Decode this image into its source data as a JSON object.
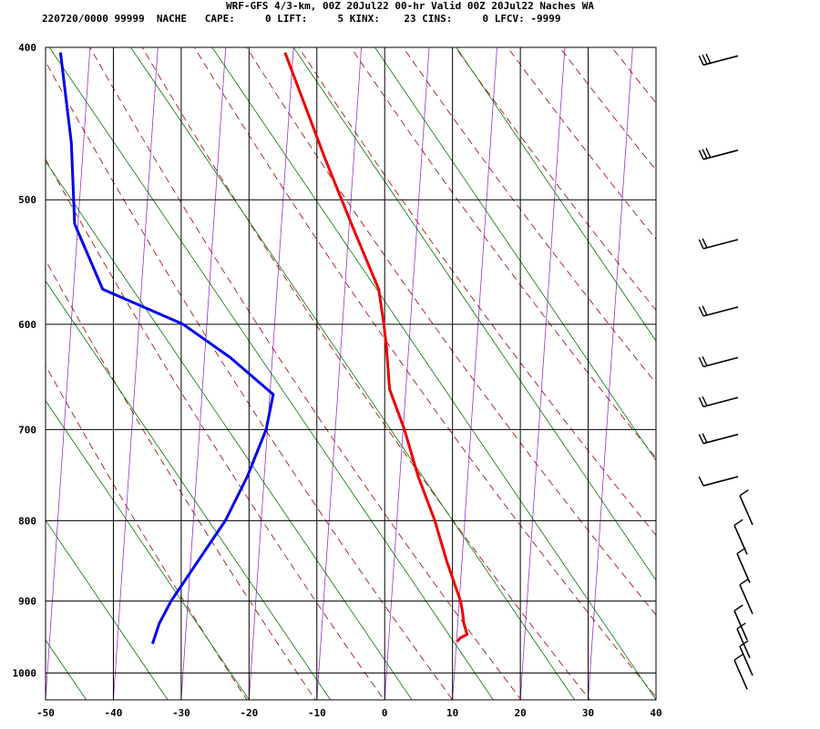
{
  "header": {
    "title": "WRF-GFS 4/3-km, 00Z 20Jul22 00-hr Valid 00Z 20Jul22 Naches WA",
    "subtitle": "220720/0000 99999  NACHE   CAPE:     0 LIFT:     5 KINX:    23 CINS:     0 LFCV: -9999"
  },
  "chart_data": {
    "type": "line",
    "diagram": "skew-T log-P",
    "xlim": [
      -50,
      40
    ],
    "ylim": [
      400,
      1040
    ],
    "y_scale": "log",
    "x_ticks": [
      -50,
      -40,
      -30,
      -20,
      -10,
      0,
      10,
      20,
      30,
      40
    ],
    "y_ticks": [
      400,
      500,
      600,
      700,
      800,
      900,
      1000
    ],
    "grid": true,
    "colors": {
      "temperature": "#ee0000",
      "dewpoint": "#0000ee",
      "isotherm": "#9933cc",
      "dry_adiabat": "#990000",
      "mixing_ratio": "#007700",
      "grid": "#000000",
      "wind_barb": "#000000"
    },
    "series": [
      {
        "key": "temperature",
        "p": [
          403,
          470,
          520,
          570,
          600,
          620,
          660,
          700,
          750,
          800,
          850,
          900,
          915,
          930,
          945,
          950,
          955
        ],
        "value": [
          -21.2,
          -14.3,
          -9.5,
          -5.0,
          -3.9,
          -3.3,
          -2.4,
          0.2,
          2.7,
          5.6,
          7.8,
          10.2,
          10.6,
          10.9,
          11.5,
          10.5,
          10.1
        ]
      },
      {
        "key": "dewpoint",
        "p": [
          403,
          460,
          518,
          570,
          600,
          630,
          665,
          700,
          750,
          800,
          850,
          900,
          930,
          958
        ],
        "value": [
          -54.3,
          -51.8,
          -50.5,
          -45.7,
          -33.5,
          -26.2,
          -19.5,
          -20.2,
          -22.5,
          -25.3,
          -29.0,
          -32.5,
          -34.0,
          -34.8
        ]
      }
    ],
    "wind_barbs": [
      {
        "p": 405,
        "speed_kt": 25
      },
      {
        "p": 465,
        "speed_kt": 25
      },
      {
        "p": 530,
        "speed_kt": 20
      },
      {
        "p": 585,
        "speed_kt": 15
      },
      {
        "p": 630,
        "speed_kt": 15
      },
      {
        "p": 668,
        "speed_kt": 15
      },
      {
        "p": 705,
        "speed_kt": 15
      },
      {
        "p": 750,
        "speed_kt": 10
      },
      {
        "p": 790,
        "speed_kt": 10
      },
      {
        "p": 825,
        "speed_kt": 10
      },
      {
        "p": 860,
        "speed_kt": 10
      },
      {
        "p": 900,
        "speed_kt": 10
      },
      {
        "p": 935,
        "speed_kt": 10
      },
      {
        "p": 960,
        "speed_kt": 10
      },
      {
        "p": 985,
        "speed_kt": 10
      },
      {
        "p": 1005,
        "speed_kt": 10
      }
    ]
  }
}
